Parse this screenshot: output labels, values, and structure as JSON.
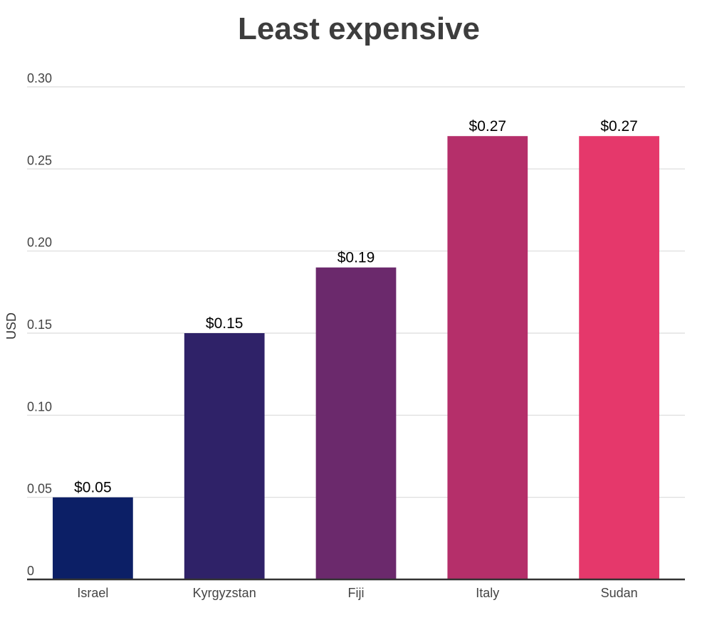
{
  "chart_data": {
    "type": "bar",
    "title": "Least expensive",
    "ylabel": "USD",
    "xlabel": "",
    "categories": [
      "Israel",
      "Kyrgyzstan",
      "Fiji",
      "Italy",
      "Sudan"
    ],
    "values": [
      0.05,
      0.15,
      0.19,
      0.27,
      0.27
    ],
    "value_labels": [
      "$0.05",
      "$0.15",
      "$0.19",
      "$0.27",
      "$0.27"
    ],
    "colors": [
      "#0c1f66",
      "#2f2268",
      "#6b296c",
      "#b52f6a",
      "#e5386b"
    ],
    "ylim": [
      0,
      0.3
    ],
    "yticks": [
      0,
      0.05,
      0.1,
      0.15,
      0.2,
      0.25,
      0.3
    ],
    "ytick_labels": [
      "0",
      "0.05",
      "0.10",
      "0.15",
      "0.20",
      "0.25",
      "0.30"
    ],
    "grid": true,
    "legend": "none"
  }
}
